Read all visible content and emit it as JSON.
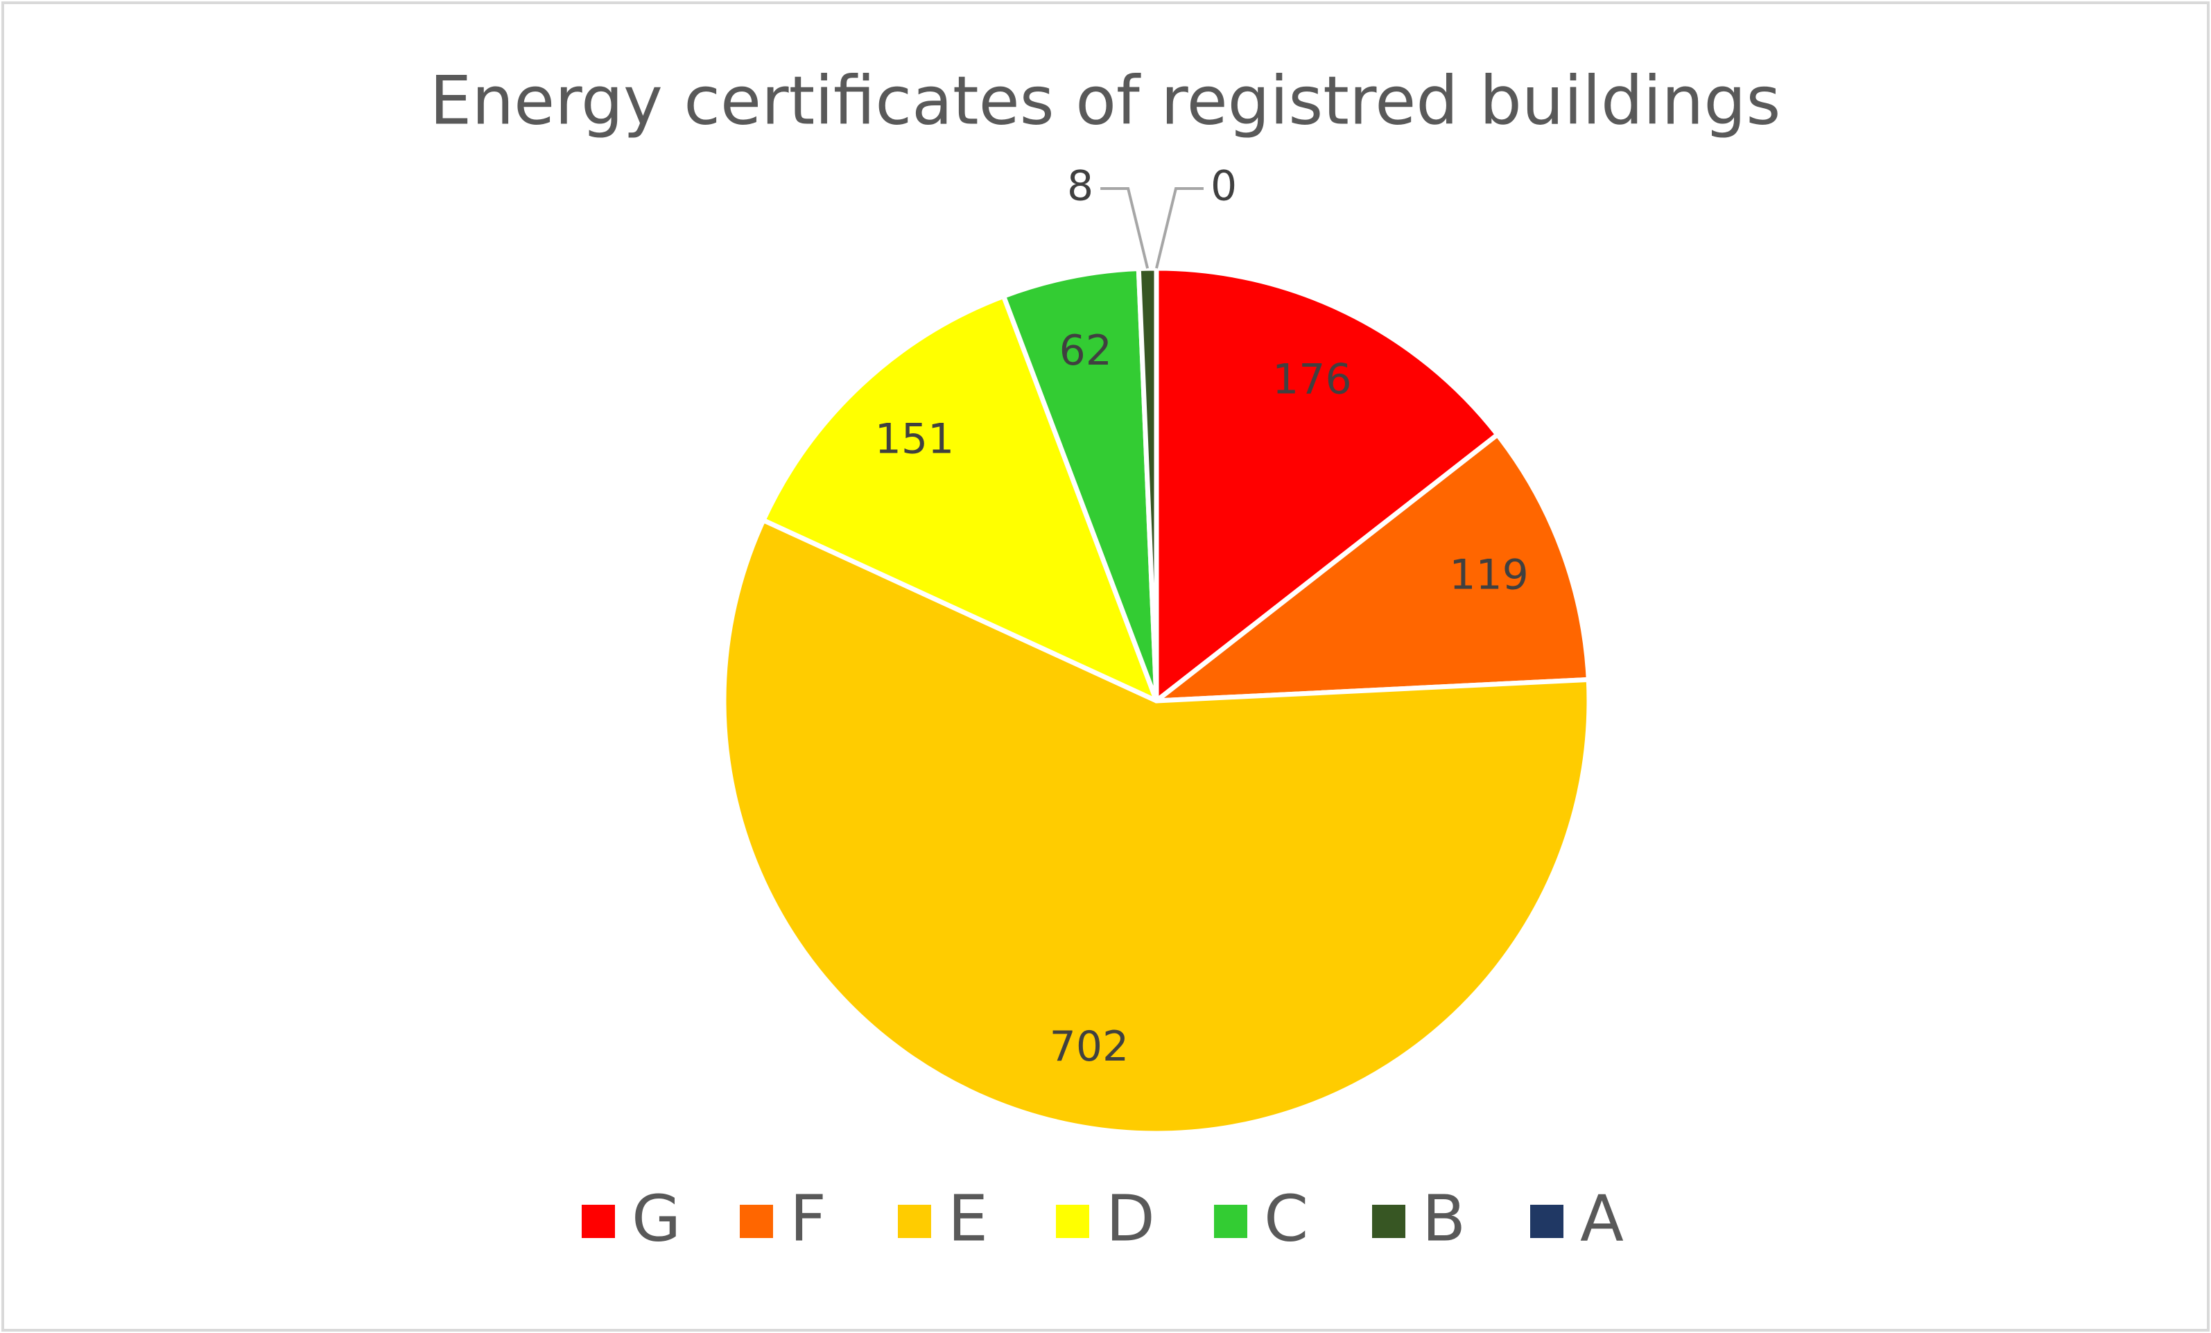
{
  "chart_data": {
    "type": "pie",
    "title": "Energy certificates of registred buildings",
    "categories": [
      "G",
      "F",
      "E",
      "D",
      "C",
      "B",
      "A"
    ],
    "values": [
      176,
      119,
      702,
      151,
      62,
      8,
      0
    ],
    "colors": [
      "#ff0000",
      "#ff6600",
      "#ffcc00",
      "#ffff00",
      "#33cc33",
      "#375623",
      "#203864"
    ],
    "legend": "bottom"
  }
}
